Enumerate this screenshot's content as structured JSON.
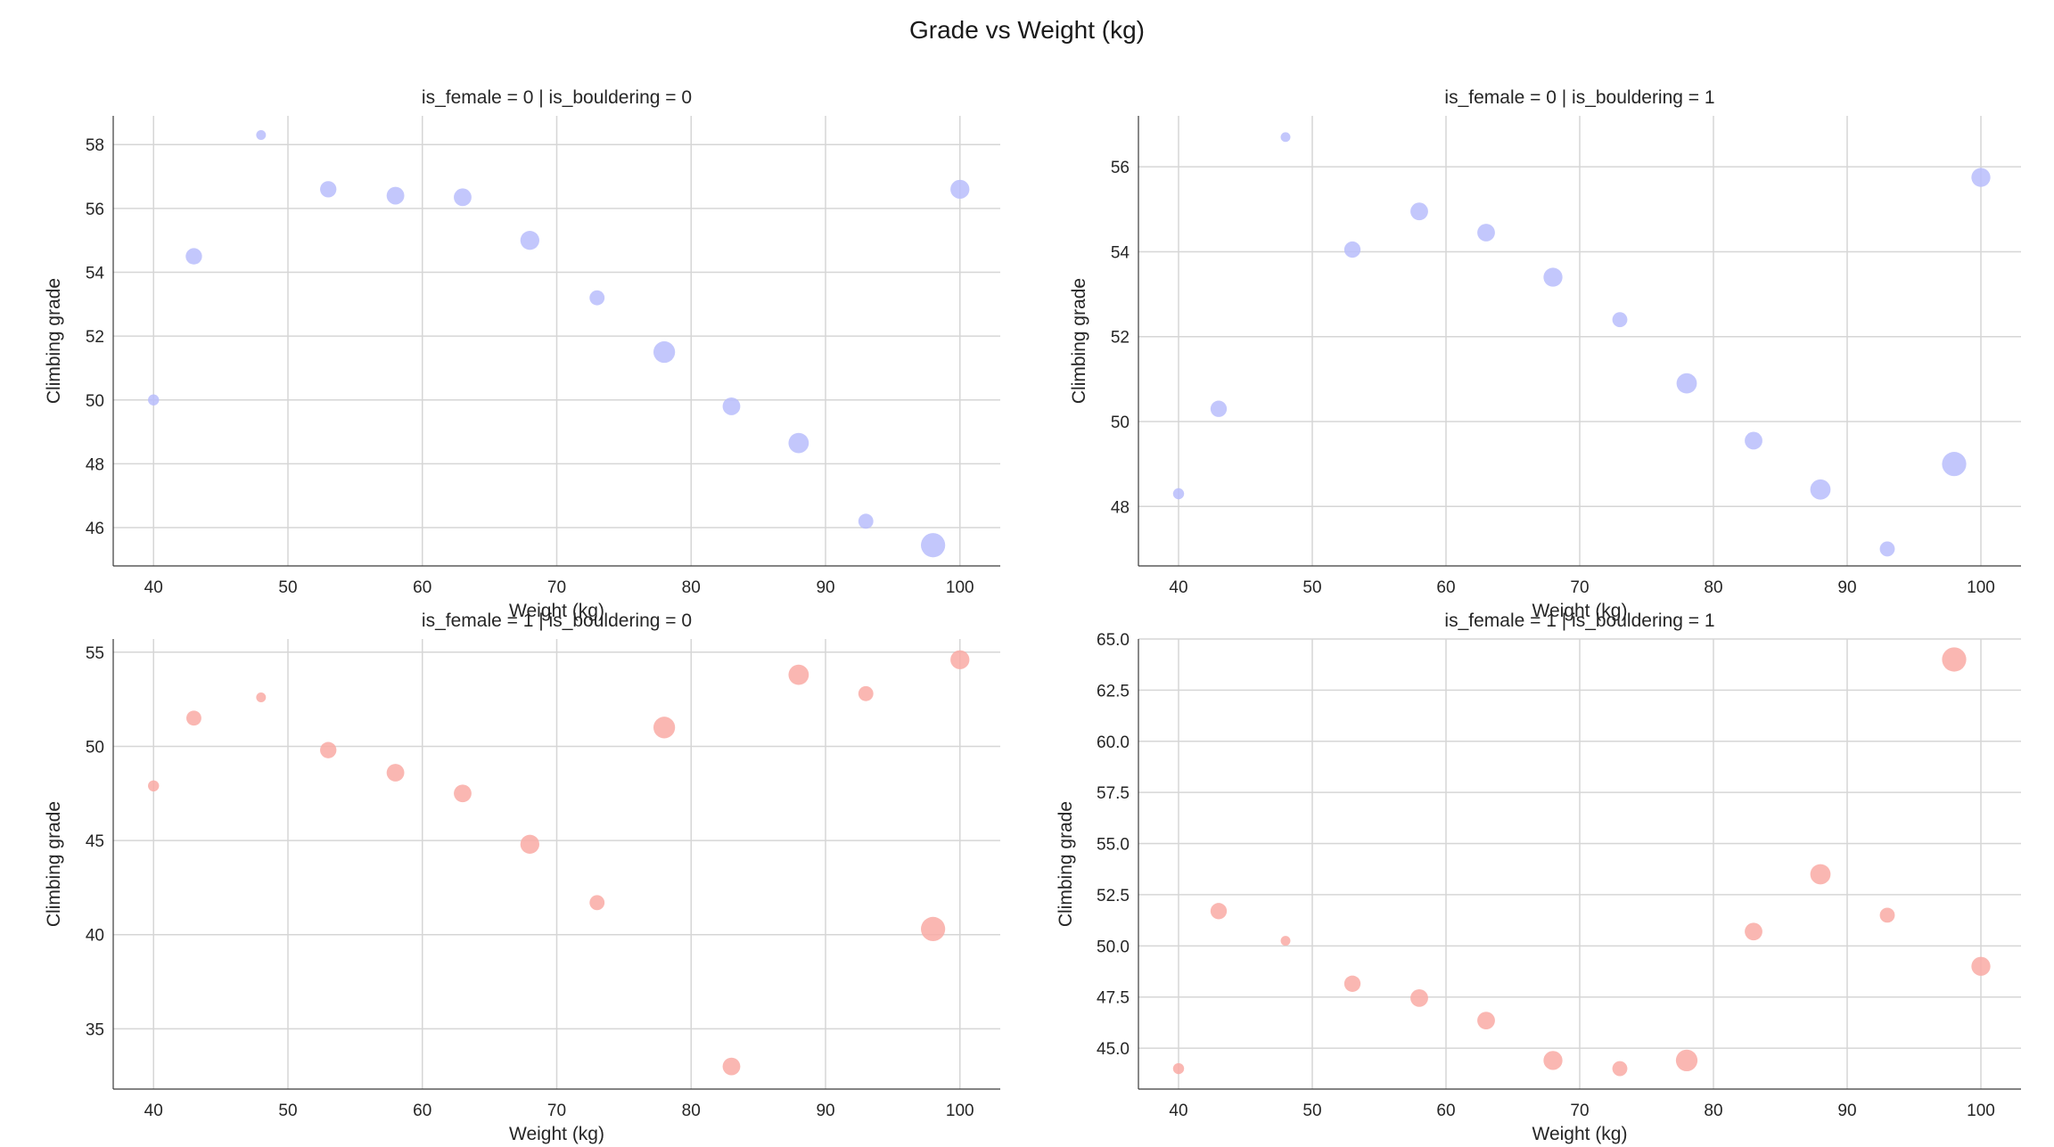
{
  "title": "Grade vs Weight (kg)",
  "colors": {
    "male": "#b8bdfb",
    "female": "#f9aaa5",
    "grid": "#d6d6d6",
    "axis": "#3a3a3a",
    "text": "#262626"
  },
  "chart_data": [
    {
      "type": "scatter",
      "title": "is_female = 0 | is_bouldering = 0",
      "xlabel": "Weight (kg)",
      "ylabel": "Climbing grade",
      "xlim": [
        37,
        103
      ],
      "ylim": [
        44.8,
        58.9
      ],
      "xticks": [
        40,
        50,
        60,
        70,
        80,
        90,
        100
      ],
      "yticks": [
        46,
        48,
        50,
        52,
        54,
        56,
        58
      ],
      "ytick_labels": [
        "46",
        "48",
        "50",
        "52",
        "54",
        "56",
        "58"
      ],
      "x": [
        40,
        43,
        48,
        53,
        58,
        63,
        68,
        73,
        78,
        83,
        88,
        93,
        98,
        100
      ],
      "y": [
        50.0,
        54.5,
        58.3,
        56.6,
        56.4,
        56.35,
        55.0,
        53.2,
        51.5,
        49.8,
        48.65,
        46.2,
        45.45,
        56.6
      ],
      "sizes": [
        5,
        9,
        4,
        9,
        10,
        10,
        11,
        8,
        13,
        10,
        12,
        8,
        15,
        11
      ],
      "color": "#b8bdfb"
    },
    {
      "type": "scatter",
      "title": "is_female = 0 | is_bouldering = 1",
      "xlabel": "Weight (kg)",
      "ylabel": "Climbing grade",
      "xlim": [
        37,
        103
      ],
      "ylim": [
        46.6,
        57.2
      ],
      "xticks": [
        40,
        50,
        60,
        70,
        80,
        90,
        100
      ],
      "yticks": [
        48,
        50,
        52,
        54,
        56
      ],
      "ytick_labels": [
        "48",
        "50",
        "52",
        "54",
        "56"
      ],
      "x": [
        40,
        43,
        48,
        53,
        58,
        63,
        68,
        73,
        78,
        83,
        88,
        93,
        98,
        100
      ],
      "y": [
        48.3,
        50.3,
        56.7,
        54.05,
        54.95,
        54.45,
        53.4,
        52.4,
        50.9,
        49.55,
        48.4,
        47.0,
        49.0,
        55.75
      ],
      "sizes": [
        5,
        9,
        4,
        9,
        10,
        10,
        11,
        8,
        12,
        10,
        12,
        8,
        15,
        11
      ],
      "color": "#b8bdfb"
    },
    {
      "type": "scatter",
      "title": "is_female = 1 | is_bouldering = 0",
      "xlabel": "Weight (kg)",
      "ylabel": "Climbing grade",
      "xlim": [
        37,
        103
      ],
      "ylim": [
        31.8,
        55.7
      ],
      "xticks": [
        40,
        50,
        60,
        70,
        80,
        90,
        100
      ],
      "yticks": [
        35,
        40,
        45,
        50,
        55
      ],
      "ytick_labels": [
        "35",
        "40",
        "45",
        "50",
        "55"
      ],
      "x": [
        40,
        43,
        48,
        53,
        58,
        63,
        68,
        73,
        78,
        83,
        88,
        93,
        98,
        100
      ],
      "y": [
        47.9,
        51.5,
        52.6,
        49.8,
        48.6,
        47.5,
        44.8,
        41.7,
        51.0,
        33.0,
        53.8,
        52.8,
        40.3,
        54.6
      ],
      "sizes": [
        5,
        8,
        4,
        9,
        10,
        10,
        11,
        8,
        13,
        10,
        12,
        8,
        15,
        11
      ],
      "color": "#f9aaa5"
    },
    {
      "type": "scatter",
      "title": "is_female = 1 | is_bouldering = 1",
      "xlabel": "Weight (kg)",
      "ylabel": "Climbing grade",
      "xlim": [
        37,
        103
      ],
      "ylim": [
        43.0,
        65.0
      ],
      "xticks": [
        40,
        50,
        60,
        70,
        80,
        90,
        100
      ],
      "yticks": [
        45.0,
        47.5,
        50.0,
        52.5,
        55.0,
        57.5,
        60.0,
        62.5,
        65.0
      ],
      "ytick_labels": [
        "45.0",
        "47.5",
        "50.0",
        "52.5",
        "55.0",
        "57.5",
        "60.0",
        "62.5",
        "65.0"
      ],
      "x": [
        40,
        43,
        48,
        53,
        58,
        63,
        68,
        73,
        78,
        83,
        88,
        93,
        98,
        100
      ],
      "y": [
        44.0,
        51.7,
        50.25,
        48.15,
        47.45,
        46.35,
        44.4,
        44.0,
        44.4,
        50.7,
        53.5,
        51.5,
        64.0,
        49.0
      ],
      "sizes": [
        5,
        9,
        4,
        9,
        10,
        10,
        11,
        8,
        13,
        10,
        12,
        8,
        15,
        11
      ],
      "color": "#f9aaa5"
    }
  ]
}
